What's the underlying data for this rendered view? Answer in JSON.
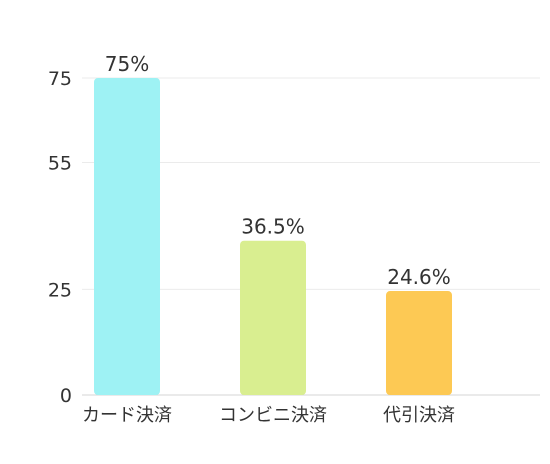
{
  "chart_data": {
    "type": "bar",
    "title": "",
    "xlabel": "",
    "ylabel": "",
    "categories": [
      "カード決済",
      "コンビニ決済",
      "代引決済"
    ],
    "values": [
      75,
      36.5,
      24.6
    ],
    "value_labels": [
      "75%",
      "36.5%",
      "24.6%"
    ],
    "colors": [
      "#9ef2f4",
      "#d9ee90",
      "#fdc954"
    ],
    "y_ticks": [
      0,
      25,
      55,
      75
    ],
    "y_tick_labels": [
      "0",
      "25",
      "55",
      "75"
    ],
    "ylim": [
      0,
      75
    ],
    "grid": true,
    "legend": "none"
  }
}
